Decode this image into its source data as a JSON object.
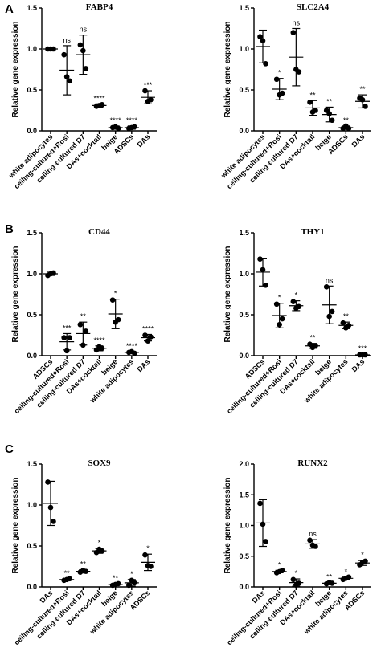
{
  "panel_labels": [
    "A",
    "B",
    "C"
  ],
  "chart_data": [
    {
      "type": "scatter",
      "title": "FABP4",
      "panel": "A",
      "ylabel": "Relative gene expression",
      "ylim": [
        0,
        1.5
      ],
      "yticks": [
        0,
        0.5,
        1.0,
        1.5
      ],
      "ytick_labels": [
        "0.0",
        "0.5",
        "1.0",
        "1.5"
      ],
      "categories": [
        "white adipocytes",
        "ceiling-cultured+Rosi",
        "ceiling-cultured D7",
        "DAs+cocktail",
        "beige",
        "ADSCs",
        "DAs"
      ],
      "means": [
        1.0,
        0.74,
        0.93,
        0.31,
        0.04,
        0.04,
        0.41
      ],
      "sd": [
        0.0,
        0.3,
        0.24,
        0.02,
        0.02,
        0.02,
        0.08
      ],
      "points": [
        [
          1.0,
          1.0,
          1.0
        ],
        [
          0.93,
          0.66,
          0.61
        ],
        [
          1.05,
          0.98,
          0.76
        ],
        [
          0.3,
          0.31,
          0.32
        ],
        [
          0.04,
          0.05,
          0.03
        ],
        [
          0.03,
          0.04,
          0.05
        ],
        [
          0.49,
          0.36,
          0.38
        ]
      ],
      "significance": [
        "",
        "ns",
        "ns",
        "****",
        "****",
        "****",
        "***"
      ]
    },
    {
      "type": "scatter",
      "title": "SLC2A4",
      "panel": "A",
      "ylabel": "Relative gene expression",
      "ylim": [
        0,
        1.5
      ],
      "yticks": [
        0,
        0.5,
        1.0,
        1.5
      ],
      "ytick_labels": [
        "0.0",
        "0.5",
        "1.0",
        "1.5"
      ],
      "categories": [
        "white adipocytes",
        "ceiling-cultured+Rosi",
        "ceiling-cultured D7",
        "DAs+cocktail",
        "beige",
        "ADSCs",
        "DAs"
      ],
      "means": [
        1.03,
        0.51,
        0.9,
        0.28,
        0.2,
        0.04,
        0.36
      ],
      "sd": [
        0.2,
        0.13,
        0.35,
        0.09,
        0.09,
        0.02,
        0.08
      ],
      "points": [
        [
          1.15,
          1.1,
          0.82
        ],
        [
          0.63,
          0.44,
          0.46
        ],
        [
          1.2,
          0.75,
          0.72
        ],
        [
          0.35,
          0.23,
          0.25
        ],
        [
          0.25,
          0.21,
          0.13
        ],
        [
          0.03,
          0.06,
          0.03
        ],
        [
          0.4,
          0.38,
          0.3
        ]
      ],
      "significance": [
        "",
        "*",
        "ns",
        "**",
        "**",
        "**",
        "**"
      ]
    },
    {
      "type": "scatter",
      "title": "CD44",
      "panel": "B",
      "ylabel": "Relative gene expression",
      "ylim": [
        0,
        1.5
      ],
      "yticks": [
        0,
        0.5,
        1.0,
        1.5
      ],
      "ytick_labels": [
        "0.0",
        "0.5",
        "1.0",
        "1.5"
      ],
      "categories": [
        "ADSCs",
        "ceiling-cultured+Rosi",
        "ceiling-cultured D7",
        "DAs+cocktail",
        "beige",
        "white adipocytes",
        "DAs"
      ],
      "means": [
        1.0,
        0.17,
        0.27,
        0.09,
        0.51,
        0.04,
        0.22
      ],
      "sd": [
        0.02,
        0.1,
        0.14,
        0.03,
        0.18,
        0.01,
        0.04
      ],
      "points": [
        [
          0.98,
          1.0,
          1.01
        ],
        [
          0.22,
          0.06,
          0.22
        ],
        [
          0.38,
          0.13,
          0.3
        ],
        [
          0.07,
          0.11,
          0.09
        ],
        [
          0.68,
          0.41,
          0.44
        ],
        [
          0.04,
          0.05,
          0.03
        ],
        [
          0.25,
          0.18,
          0.23
        ]
      ],
      "significance": [
        "",
        "***",
        "**",
        "****",
        "*",
        "****",
        "****"
      ]
    },
    {
      "type": "scatter",
      "title": "THY1",
      "panel": "B",
      "ylabel": "Relative gene expression",
      "ylim": [
        0,
        1.5
      ],
      "yticks": [
        0,
        0.5,
        1.0,
        1.5
      ],
      "ytick_labels": [
        "0.0",
        "0.5",
        "1.0",
        "1.5"
      ],
      "categories": [
        "ADSCs",
        "ceiling-cultured+Rosi",
        "ceiling-cultured D7",
        "DAs+cocktail",
        "beige",
        "white adipocytes",
        "DAs"
      ],
      "means": [
        1.02,
        0.49,
        0.61,
        0.12,
        0.62,
        0.37,
        0.01
      ],
      "sd": [
        0.17,
        0.15,
        0.06,
        0.03,
        0.23,
        0.04,
        0.01
      ],
      "points": [
        [
          1.18,
          1.05,
          0.86
        ],
        [
          0.63,
          0.38,
          0.45
        ],
        [
          0.66,
          0.58,
          0.6
        ],
        [
          0.14,
          0.1,
          0.12
        ],
        [
          0.84,
          0.48,
          0.54
        ],
        [
          0.4,
          0.34,
          0.37
        ],
        [
          0.01,
          0.01,
          0.01
        ]
      ],
      "significance": [
        "",
        "*",
        "*",
        "**",
        "ns",
        "**",
        "***"
      ]
    },
    {
      "type": "scatter",
      "title": "SOX9",
      "panel": "C",
      "ylabel": "Relative gene expression",
      "ylim": [
        0,
        1.5
      ],
      "yticks": [
        0,
        0.5,
        1.0,
        1.5
      ],
      "ytick_labels": [
        "0.0",
        "0.5",
        "1.0",
        "1.5"
      ],
      "categories": [
        "DAs",
        "ceiling-cultured+Rosi",
        "ceiling-cultured D7",
        "DAs+cocktail",
        "beige",
        "white adipocytes",
        "ADSCs"
      ],
      "means": [
        1.02,
        0.09,
        0.19,
        0.44,
        0.03,
        0.05,
        0.3
      ],
      "sd": [
        0.27,
        0.01,
        0.02,
        0.03,
        0.01,
        0.04,
        0.1
      ],
      "points": [
        [
          1.28,
          0.97,
          0.8
        ],
        [
          0.08,
          0.09,
          0.1
        ],
        [
          0.18,
          0.2,
          0.19
        ],
        [
          0.42,
          0.46,
          0.44
        ],
        [
          0.02,
          0.03,
          0.04
        ],
        [
          0.02,
          0.08,
          0.05
        ],
        [
          0.39,
          0.26,
          0.25
        ]
      ],
      "significance": [
        "",
        "**",
        "**",
        "*",
        "**",
        "*",
        "*"
      ]
    },
    {
      "type": "scatter",
      "title": "RUNX2",
      "panel": "C",
      "ylabel": "Relative gene expression",
      "ylim": [
        0,
        2.0
      ],
      "yticks": [
        0,
        0.5,
        1.0,
        1.5,
        2.0
      ],
      "ytick_labels": [
        "0.0",
        "0.5",
        "1.0",
        "1.5",
        "2.0"
      ],
      "categories": [
        "DAs",
        "ceiling-cultured+Rosi",
        "ceiling-cultured D7",
        "DAs+cocktail",
        "beige",
        "white adipocytes",
        "ADSCs"
      ],
      "means": [
        1.04,
        0.25,
        0.07,
        0.7,
        0.06,
        0.14,
        0.39
      ],
      "sd": [
        0.38,
        0.02,
        0.06,
        0.07,
        0.01,
        0.02,
        0.04
      ],
      "points": [
        [
          1.36,
          1.02,
          0.74
        ],
        [
          0.23,
          0.25,
          0.27
        ],
        [
          0.12,
          0.03,
          0.06
        ],
        [
          0.76,
          0.68,
          0.66
        ],
        [
          0.05,
          0.07,
          0.06
        ],
        [
          0.12,
          0.14,
          0.16
        ],
        [
          0.36,
          0.4,
          0.42
        ]
      ],
      "significance": [
        "",
        "*",
        "*",
        "ns",
        "**",
        "*",
        "*"
      ]
    }
  ]
}
